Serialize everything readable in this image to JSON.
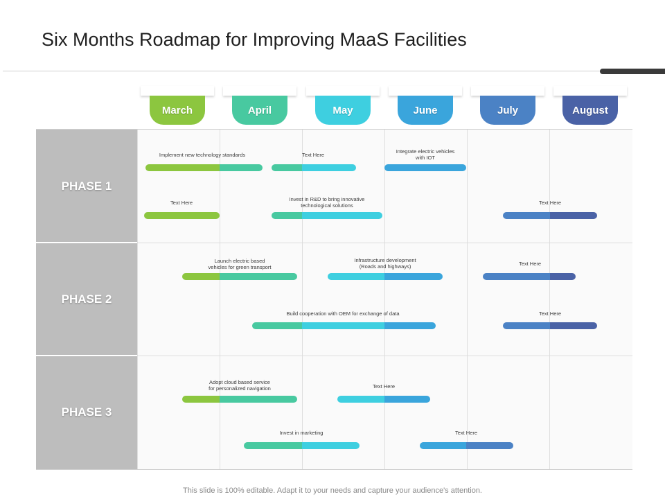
{
  "slide": {
    "title": "Six Months Roadmap for Improving MaaS Facilities",
    "footer": "This slide is 100% editable. Adapt it to your needs and capture your audience's attention."
  },
  "months": [
    {
      "label": "March",
      "color": "#8cc63f"
    },
    {
      "label": "April",
      "color": "#48c9a0"
    },
    {
      "label": "May",
      "color": "#3ecfe0"
    },
    {
      "label": "June",
      "color": "#3aa5dc"
    },
    {
      "label": "July",
      "color": "#4b82c5"
    },
    {
      "label": "August",
      "color": "#4a62a6"
    }
  ],
  "phases": [
    {
      "label": "PHASE 1"
    },
    {
      "label": "PHASE 2"
    },
    {
      "label": "PHASE 3"
    }
  ],
  "tasks": [
    {
      "label": "Implement  new  technology  standards"
    },
    {
      "label": "Text Here"
    },
    {
      "label": "Integrate  electric vehicles\nwith IOT"
    },
    {
      "label": "Text Here"
    },
    {
      "label": "Invest in R&D to bring innovative\ntechnological  solutions"
    },
    {
      "label": "Text Here"
    },
    {
      "label": "Launch  electric based\nvehicles for green transport"
    },
    {
      "label": "Infrastructure  development\n(Roads  and  highways)"
    },
    {
      "label": "Text Here"
    },
    {
      "label": "Build cooperation  with OEM for exchange  of data"
    },
    {
      "label": "Text Here"
    },
    {
      "label": "Adopt  cloud  based service\nfor personalized  navigation"
    },
    {
      "label": "Text Here"
    },
    {
      "label": "Invest in marketing"
    },
    {
      "label": "Text Here"
    }
  ]
}
